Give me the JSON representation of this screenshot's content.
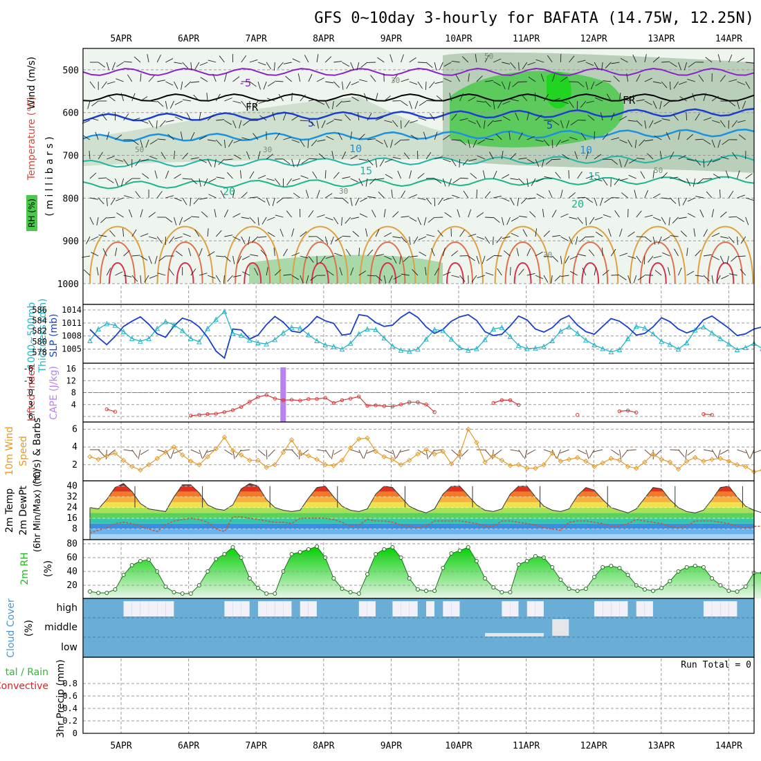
{
  "title": "GFS 0~10day 3-hourly for BAFATA (14.75W, 12.25N)",
  "dates": [
    "5APR",
    "6APR",
    "7APR",
    "8APR",
    "9APR",
    "10APR",
    "11APR",
    "12APR",
    "13APR",
    "14APR"
  ],
  "colors": {
    "grid": "#9a9a9a",
    "sounding_green": "#4cc94c",
    "cloud_blue": "#6aaed6",
    "slp_blue": "#1a3fcf",
    "thickness_cyan": "#22b5c8",
    "cape_purple": "#b982f0",
    "li_red": "#d23a3a",
    "wind_orange": "#e39a2a",
    "rh_green": "#22b822",
    "precip_green": "#2fb82f",
    "precip_red": "#e02020"
  },
  "panels": {
    "sounding": {
      "ylabel_wind": "Wind (m/s)",
      "ylabel_temp": "Temperature (°C)",
      "ylabel_rh": "RH (%)",
      "ylabel_units": "( m i l l i b a r s )",
      "yticks": [
        "500",
        "600",
        "700",
        "800",
        "900",
        "1000"
      ],
      "isotherm_labels": [
        "-5",
        "FR",
        "FR",
        "5",
        "5",
        "10",
        "10",
        "15",
        "15",
        "20",
        "20"
      ],
      "rh_labels": [
        "30",
        "50",
        "30",
        "30",
        "50",
        "30",
        "50"
      ]
    },
    "thickness": {
      "ylabel_left": "1000~500mb",
      "ylabel_left2": "Thickness (dm)",
      "ylabel_right": "SLP (mb)",
      "yticks_left": [
        "586",
        "584",
        "582",
        "580",
        "578"
      ],
      "yticks_right": [
        "1014",
        "1011",
        "1008",
        "1005"
      ]
    },
    "cape": {
      "ylabel_left": "Lifted Index",
      "ylabel_right": "CAPE (J/kg)",
      "yticks_left": [
        "-6",
        "-3",
        "0",
        "3",
        "6"
      ],
      "yticks_right": [
        "16",
        "12",
        "8",
        "4"
      ]
    },
    "wind10": {
      "ylabel1": "10m Wind",
      "ylabel2": "Speed",
      "ylabel3": "(m/s) & Barbs",
      "yticks": [
        "6",
        "4",
        "2"
      ]
    },
    "temp2m": {
      "ylabel1": "2m Temp",
      "ylabel2": "2m DewPt",
      "ylabel3": "(6hr Min/Max) (°C)",
      "yticks": [
        "40",
        "32",
        "24",
        "16",
        "8"
      ]
    },
    "rh2m": {
      "ylabel1": "2m RH",
      "ylabel2": "(%)",
      "yticks": [
        "80",
        "60",
        "40",
        "20"
      ]
    },
    "cloud": {
      "ylabel1": "Cloud Cover",
      "ylabel2": "(%)",
      "levels": [
        "high",
        "middle",
        "low"
      ]
    },
    "precip": {
      "ylabel1": "3hr Precip (mm)",
      "ylabel_total": "tal / Rain",
      "ylabel_conv": "Convective",
      "yticks": [
        "0.8",
        "0.6",
        "0.4",
        "0.2",
        "0"
      ],
      "run_total": "Run Total = 0"
    }
  },
  "chart_data": [
    {
      "type": "line",
      "name": "thickness_slp",
      "x_hours": [
        0,
        3,
        6,
        9,
        12,
        15,
        18,
        21,
        24,
        27,
        30,
        33,
        36,
        39,
        42,
        45,
        48,
        51,
        54,
        57,
        60,
        63,
        66,
        69,
        72,
        75,
        78,
        81,
        84,
        87,
        90,
        93,
        96,
        99,
        102,
        105,
        108,
        111,
        114,
        117,
        120,
        123,
        126,
        129,
        132,
        135,
        138,
        141,
        144,
        147,
        150,
        153,
        156,
        159,
        162,
        165,
        168,
        171,
        174,
        177,
        180,
        183,
        186,
        189,
        192,
        195,
        198,
        201,
        204,
        207,
        210,
        213,
        216,
        219,
        222,
        225,
        228,
        231,
        234,
        237,
        240
      ],
      "series": [
        {
          "name": "Thickness (dm)",
          "axis": "left",
          "ylim": [
            577,
            586
          ],
          "values": [
            580.2,
            582.4,
            583.4,
            583.1,
            581.9,
            580.6,
            580.1,
            580.6,
            582.5,
            583.8,
            583.2,
            582.1,
            580.6,
            580.0,
            582.5,
            584.2,
            585.7,
            581.6,
            581.2,
            580.3,
            579.8,
            579.6,
            580.4,
            581.7,
            582.7,
            582.6,
            581.3,
            580.2,
            579.4,
            579.1,
            578.6,
            579.7,
            581.5,
            582.4,
            582.3,
            580.7,
            579.2,
            578.4,
            578.2,
            578.6,
            580.5,
            582.3,
            582.1,
            580.5,
            578.9,
            578.4,
            578.7,
            580.4,
            582.4,
            582.7,
            581.0,
            579.3,
            578.7,
            578.8,
            579.1,
            580.2,
            582.0,
            582.8,
            581.6,
            580.3,
            579.4,
            578.7,
            578.1,
            578.5,
            580.6,
            582.9,
            582.6,
            581.5,
            580.1,
            579.5,
            578.6,
            579.8,
            582.2,
            582.8,
            581.7,
            580.6,
            579.6,
            578.5,
            578.9,
            579.7,
            578.7
          ]
        },
        {
          "name": "SLP (mb)",
          "axis": "right",
          "ylim": [
            1003,
            1014
          ],
          "values": [
            1009.5,
            1007.6,
            1006.0,
            1007.9,
            1010.2,
            1011.4,
            1012.4,
            1010.7,
            1008.5,
            1007.7,
            1010.3,
            1012.1,
            1011.5,
            1010.1,
            1007.7,
            1004.5,
            1002.9,
            1009.6,
            1009.4,
            1007.3,
            1008.2,
            1010.6,
            1012.5,
            1011.2,
            1009.1,
            1008.8,
            1010.4,
            1012.5,
            1011.5,
            1010.9,
            1008.2,
            1008.5,
            1012.9,
            1012.6,
            1011.1,
            1010.2,
            1010.5,
            1012.3,
            1013.5,
            1012.3,
            1010.1,
            1008.6,
            1009.5,
            1011.4,
            1012.4,
            1012.9,
            1011.6,
            1009.0,
            1008.1,
            1008.4,
            1010.3,
            1012.6,
            1011.7,
            1009.6,
            1008.9,
            1009.9,
            1011.8,
            1012.7,
            1010.5,
            1009.0,
            1008.4,
            1010.2,
            1012.0,
            1011.4,
            1010.0,
            1008.2,
            1008.6,
            1010.1,
            1012.2,
            1011.3,
            1009.6,
            1008.7,
            1009.4,
            1011.7,
            1012.6,
            1011.2,
            1009.8,
            1008.1,
            1008.5,
            1009.6,
            1010.1
          ]
        }
      ]
    },
    {
      "type": "line",
      "name": "lifted_index_cape",
      "cape_bar": {
        "day_offset": 2.4,
        "value": 16
      },
      "lifted_index_dashed": 0,
      "x_hours": [
        6,
        9,
        36,
        39,
        42,
        45,
        48,
        51,
        54,
        57,
        60,
        63,
        66,
        69,
        72,
        75,
        78,
        81,
        84,
        87,
        90,
        93,
        96,
        99,
        102,
        105,
        108,
        111,
        114,
        117,
        120,
        123,
        144,
        147,
        150,
        153,
        174,
        189,
        192,
        195,
        219,
        222
      ],
      "li_values": [
        4.2,
        4.8,
        5.8,
        5.6,
        5.4,
        5.3,
        4.9,
        4.4,
        3.6,
        2.3,
        1.1,
        0.6,
        1.5,
        1.9,
        1.8,
        2.0,
        1.6,
        1.6,
        1.3,
        2.6,
        1.9,
        1.5,
        1.0,
        3.3,
        3.2,
        3.4,
        3.5,
        3.0,
        2.4,
        2.4,
        3.0,
        4.9,
        2.6,
        1.9,
        1.9,
        3.1,
        5.6,
        4.7,
        4.5,
        5.0,
        5.4,
        5.6
      ],
      "ylim_left": [
        6,
        -6
      ],
      "ylim_right": [
        0,
        16
      ]
    },
    {
      "type": "line",
      "name": "wind10m",
      "x_hours": [
        0,
        3,
        6,
        9,
        12,
        15,
        18,
        21,
        24,
        27,
        30,
        33,
        36,
        39,
        42,
        45,
        48,
        51,
        54,
        57,
        60,
        63,
        66,
        69,
        72,
        75,
        78,
        81,
        84,
        87,
        90,
        93,
        96,
        99,
        102,
        105,
        108,
        111,
        114,
        117,
        120,
        123,
        126,
        129,
        132,
        135,
        138,
        141,
        144,
        147,
        150,
        153,
        156,
        159,
        162,
        165,
        168,
        171,
        174,
        177,
        180,
        183,
        186,
        189,
        192,
        195,
        198,
        201,
        204,
        207,
        210,
        213,
        216,
        219,
        222,
        225,
        228,
        231,
        234,
        237,
        240
      ],
      "values": [
        2.9,
        2.6,
        3.0,
        3.3,
        2.5,
        1.8,
        1.4,
        2.0,
        2.7,
        3.4,
        4.0,
        3.1,
        2.4,
        2.0,
        2.9,
        3.8,
        5.1,
        3.6,
        3.1,
        2.5,
        2.5,
        1.7,
        2.0,
        3.4,
        4.8,
        3.3,
        3.0,
        2.6,
        2.0,
        1.9,
        2.5,
        3.9,
        4.9,
        5.0,
        3.5,
        2.9,
        2.6,
        2.0,
        2.5,
        3.2,
        3.7,
        3.2,
        3.5,
        2.1,
        3.2,
        6.0,
        4.5,
        2.3,
        3.0,
        2.5,
        1.9,
        2.0,
        1.6,
        1.6,
        2.0,
        3.3,
        2.4,
        2.6,
        2.8,
        2.4,
        1.8,
        2.2,
        2.7,
        2.5,
        1.8,
        1.6,
        2.3,
        3.2,
        2.6,
        2.3,
        1.5,
        2.4,
        2.8,
        2.4,
        2.6,
        2.7,
        2.4,
        2.0,
        1.8,
        1.2,
        1.4
      ],
      "ylim": [
        0.5,
        6.5
      ]
    },
    {
      "type": "area",
      "name": "temp_dewpt_2m",
      "x_hours": [
        0,
        3,
        6,
        9,
        12,
        15,
        18,
        21,
        24,
        27,
        30,
        33,
        36,
        39,
        42,
        45,
        48,
        51,
        54,
        57,
        60,
        63,
        66,
        69,
        72,
        75,
        78,
        81,
        84,
        87,
        90,
        93,
        96,
        99,
        102,
        105,
        108,
        111,
        114,
        117,
        120,
        123,
        126,
        129,
        132,
        135,
        138,
        141,
        144,
        147,
        150,
        153,
        156,
        159,
        162,
        165,
        168,
        171,
        174,
        177,
        180,
        183,
        186,
        189,
        192,
        195,
        198,
        201,
        204,
        207,
        210,
        213,
        216,
        219,
        222,
        225,
        228,
        231,
        234,
        237,
        240
      ],
      "temp": [
        24,
        23,
        30,
        39,
        42,
        36,
        27,
        23,
        22,
        21,
        32,
        41,
        41,
        35,
        26,
        23,
        22,
        26,
        38,
        42,
        40,
        30,
        24,
        22,
        21,
        22,
        31,
        39,
        40,
        32,
        25,
        22,
        21,
        23,
        34,
        40,
        39,
        32,
        25,
        22,
        20,
        23,
        34,
        40,
        40,
        33,
        26,
        22,
        21,
        23,
        34,
        40,
        40,
        32,
        25,
        22,
        21,
        23,
        33,
        39,
        37,
        30,
        24,
        22,
        20,
        23,
        31,
        39,
        38,
        30,
        24,
        21,
        20,
        22,
        30,
        39,
        40,
        32,
        25,
        22,
        20
      ],
      "dewpt": [
        5,
        7,
        9,
        12,
        13,
        12,
        10,
        8,
        6,
        11,
        14,
        15,
        16,
        15,
        13,
        8,
        6,
        17,
        17,
        16,
        15,
        14,
        13,
        13,
        12,
        16,
        16,
        16,
        16,
        15,
        13,
        10,
        11,
        15,
        14,
        14,
        13,
        11,
        10,
        9,
        10,
        14,
        14,
        14,
        14,
        13,
        12,
        10,
        10,
        14,
        14,
        13,
        12,
        11,
        9,
        8,
        7,
        13,
        14,
        14,
        13,
        12,
        10,
        10,
        12,
        15,
        14,
        13,
        12,
        10,
        9,
        10,
        14,
        14,
        14,
        13,
        12,
        10,
        9,
        10,
        10
      ],
      "ylim": [
        0,
        44
      ]
    },
    {
      "type": "area",
      "name": "rh2m",
      "x_hours": [
        0,
        3,
        6,
        9,
        12,
        15,
        18,
        21,
        24,
        27,
        30,
        33,
        36,
        39,
        42,
        45,
        48,
        51,
        54,
        57,
        60,
        63,
        66,
        69,
        72,
        75,
        78,
        81,
        84,
        87,
        90,
        93,
        96,
        99,
        102,
        105,
        108,
        111,
        114,
        117,
        120,
        123,
        126,
        129,
        132,
        135,
        138,
        141,
        144,
        147,
        150,
        153,
        156,
        159,
        162,
        165,
        168,
        171,
        174,
        177,
        180,
        183,
        186,
        189,
        192,
        195,
        198,
        201,
        204,
        207,
        210,
        213,
        216,
        219,
        222,
        225,
        228,
        231,
        234,
        237,
        240
      ],
      "values": [
        11,
        9,
        9,
        14,
        35,
        49,
        55,
        57,
        40,
        18,
        10,
        8,
        8,
        20,
        40,
        58,
        65,
        75,
        60,
        30,
        16,
        8,
        8,
        40,
        65,
        68,
        72,
        76,
        60,
        30,
        15,
        10,
        8,
        36,
        65,
        72,
        75,
        60,
        30,
        14,
        12,
        12,
        45,
        66,
        70,
        75,
        55,
        30,
        17,
        10,
        10,
        50,
        55,
        62,
        60,
        46,
        28,
        15,
        12,
        15,
        32,
        46,
        48,
        45,
        35,
        20,
        14,
        12,
        16,
        26,
        40,
        46,
        48,
        46,
        30,
        20,
        12,
        11,
        18,
        38,
        38
      ],
      "ylim": [
        5,
        82
      ]
    },
    {
      "type": "bar",
      "name": "cloud_cover",
      "high_gap_hours": [
        12,
        15,
        18,
        21,
        24,
        27,
        48,
        51,
        54,
        60,
        63,
        66,
        69,
        75,
        78,
        96,
        99,
        108,
        111,
        114,
        120,
        126,
        129,
        147,
        150,
        156,
        159,
        180,
        183,
        186,
        189,
        195,
        198,
        219,
        222,
        225,
        228
      ]
    },
    {
      "type": "bar",
      "name": "precip_3hr",
      "ylim": [
        0,
        1
      ],
      "values": []
    }
  ]
}
